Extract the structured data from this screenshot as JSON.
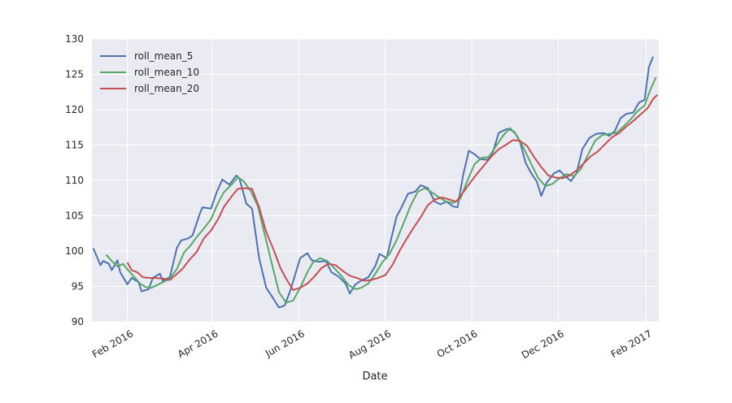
{
  "chart_data": {
    "type": "line",
    "title": "",
    "xlabel": "Date",
    "ylabel": "",
    "x_range": [
      "2016-01-07",
      "2017-02-10"
    ],
    "ylim": [
      90,
      130
    ],
    "yticks": [
      90,
      95,
      100,
      105,
      110,
      115,
      120,
      125,
      130
    ],
    "xticks": [
      {
        "label": "Feb 2016",
        "date": "2016-02-01"
      },
      {
        "label": "Apr 2016",
        "date": "2016-04-01"
      },
      {
        "label": "Jun 2016",
        "date": "2016-06-01"
      },
      {
        "label": "Aug 2016",
        "date": "2016-08-01"
      },
      {
        "label": "Oct 2016",
        "date": "2016-10-01"
      },
      {
        "label": "Dec 2016",
        "date": "2016-12-01"
      },
      {
        "label": "Feb 2017",
        "date": "2017-02-01"
      }
    ],
    "grid": true,
    "legend_position": "upper-left",
    "series": [
      {
        "name": "roll_mean_5",
        "color": "#4c72b0",
        "points": [
          [
            "2016-01-08",
            100.4
          ],
          [
            "2016-01-13",
            98.0
          ],
          [
            "2016-01-15",
            98.6
          ],
          [
            "2016-01-19",
            98.2
          ],
          [
            "2016-01-21",
            97.3
          ],
          [
            "2016-01-25",
            98.7
          ],
          [
            "2016-01-27",
            97.0
          ],
          [
            "2016-02-01",
            95.3
          ],
          [
            "2016-02-04",
            96.2
          ],
          [
            "2016-02-09",
            95.6
          ],
          [
            "2016-02-11",
            94.3
          ],
          [
            "2016-02-16",
            94.6
          ],
          [
            "2016-02-19",
            96.2
          ],
          [
            "2016-02-24",
            96.8
          ],
          [
            "2016-02-26",
            95.8
          ],
          [
            "2016-03-02",
            96.3
          ],
          [
            "2016-03-07",
            100.5
          ],
          [
            "2016-03-10",
            101.5
          ],
          [
            "2016-03-15",
            101.8
          ],
          [
            "2016-03-18",
            102.2
          ],
          [
            "2016-03-23",
            105.2
          ],
          [
            "2016-03-25",
            106.2
          ],
          [
            "2016-03-31",
            106.0
          ],
          [
            "2016-04-04",
            108.3
          ],
          [
            "2016-04-08",
            110.1
          ],
          [
            "2016-04-13",
            109.4
          ],
          [
            "2016-04-18",
            110.7
          ],
          [
            "2016-04-20",
            110.3
          ],
          [
            "2016-04-25",
            106.7
          ],
          [
            "2016-04-29",
            106.0
          ],
          [
            "2016-05-04",
            99.0
          ],
          [
            "2016-05-09",
            94.8
          ],
          [
            "2016-05-13",
            93.6
          ],
          [
            "2016-05-18",
            92.0
          ],
          [
            "2016-05-22",
            92.3
          ],
          [
            "2016-05-26",
            94.4
          ],
          [
            "2016-06-02",
            99.0
          ],
          [
            "2016-06-07",
            99.7
          ],
          [
            "2016-06-10",
            98.7
          ],
          [
            "2016-06-15",
            98.5
          ],
          [
            "2016-06-20",
            98.6
          ],
          [
            "2016-06-24",
            97.0
          ],
          [
            "2016-06-29",
            96.4
          ],
          [
            "2016-07-04",
            95.4
          ],
          [
            "2016-07-07",
            94.0
          ],
          [
            "2016-07-11",
            95.3
          ],
          [
            "2016-07-14",
            95.7
          ],
          [
            "2016-07-20",
            96.3
          ],
          [
            "2016-07-25",
            97.9
          ],
          [
            "2016-07-28",
            99.6
          ],
          [
            "2016-08-02",
            99.0
          ],
          [
            "2016-08-05",
            101.6
          ],
          [
            "2016-08-09",
            104.9
          ],
          [
            "2016-08-12",
            106.0
          ],
          [
            "2016-08-17",
            108.1
          ],
          [
            "2016-08-22",
            108.4
          ],
          [
            "2016-08-26",
            109.3
          ],
          [
            "2016-08-31",
            108.9
          ],
          [
            "2016-09-05",
            107.0
          ],
          [
            "2016-09-09",
            106.6
          ],
          [
            "2016-09-13",
            107.0
          ],
          [
            "2016-09-18",
            106.3
          ],
          [
            "2016-09-21",
            106.2
          ],
          [
            "2016-09-25",
            110.8
          ],
          [
            "2016-09-29",
            114.2
          ],
          [
            "2016-10-03",
            113.7
          ],
          [
            "2016-10-07",
            113.0
          ],
          [
            "2016-10-12",
            112.9
          ],
          [
            "2016-10-16",
            114.0
          ],
          [
            "2016-10-20",
            116.7
          ],
          [
            "2016-10-26",
            117.3
          ],
          [
            "2016-10-31",
            116.9
          ],
          [
            "2016-11-04",
            115.5
          ],
          [
            "2016-11-08",
            112.5
          ],
          [
            "2016-11-12",
            111.0
          ],
          [
            "2016-11-16",
            109.8
          ],
          [
            "2016-11-19",
            107.8
          ],
          [
            "2016-11-23",
            109.7
          ],
          [
            "2016-11-28",
            111.0
          ],
          [
            "2016-12-02",
            111.4
          ],
          [
            "2016-12-06",
            110.6
          ],
          [
            "2016-12-10",
            109.9
          ],
          [
            "2016-12-14",
            111.0
          ],
          [
            "2016-12-18",
            114.4
          ],
          [
            "2016-12-23",
            116.0
          ],
          [
            "2016-12-28",
            116.6
          ],
          [
            "2017-01-02",
            116.7
          ],
          [
            "2017-01-06",
            116.3
          ],
          [
            "2017-01-10",
            117.0
          ],
          [
            "2017-01-14",
            118.8
          ],
          [
            "2017-01-18",
            119.4
          ],
          [
            "2017-01-23",
            119.6
          ],
          [
            "2017-01-27",
            121.0
          ],
          [
            "2017-01-31",
            121.4
          ],
          [
            "2017-02-03",
            126.0
          ],
          [
            "2017-02-06",
            127.5
          ]
        ]
      },
      {
        "name": "roll_mean_10",
        "color": "#55a868",
        "points": [
          [
            "2016-01-17",
            99.5
          ],
          [
            "2016-01-21",
            98.6
          ],
          [
            "2016-01-25",
            97.8
          ],
          [
            "2016-01-29",
            98.2
          ],
          [
            "2016-02-02",
            97.2
          ],
          [
            "2016-02-06",
            96.3
          ],
          [
            "2016-02-10",
            95.4
          ],
          [
            "2016-02-14",
            94.9
          ],
          [
            "2016-02-18",
            94.8
          ],
          [
            "2016-02-22",
            95.2
          ],
          [
            "2016-02-26",
            95.6
          ],
          [
            "2016-03-02",
            96.1
          ],
          [
            "2016-03-07",
            97.5
          ],
          [
            "2016-03-12",
            99.8
          ],
          [
            "2016-03-17",
            100.9
          ],
          [
            "2016-03-21",
            102.0
          ],
          [
            "2016-03-26",
            103.2
          ],
          [
            "2016-03-31",
            104.5
          ],
          [
            "2016-04-05",
            106.8
          ],
          [
            "2016-04-09",
            108.3
          ],
          [
            "2016-04-14",
            109.3
          ],
          [
            "2016-04-19",
            110.4
          ],
          [
            "2016-04-23",
            109.9
          ],
          [
            "2016-04-28",
            108.5
          ],
          [
            "2016-05-03",
            106.4
          ],
          [
            "2016-05-08",
            102.3
          ],
          [
            "2016-05-13",
            98.2
          ],
          [
            "2016-05-18",
            94.2
          ],
          [
            "2016-05-23",
            92.7
          ],
          [
            "2016-05-28",
            93.0
          ],
          [
            "2016-06-02",
            94.8
          ],
          [
            "2016-06-07",
            97.0
          ],
          [
            "2016-06-11",
            98.4
          ],
          [
            "2016-06-16",
            99.0
          ],
          [
            "2016-06-21",
            98.6
          ],
          [
            "2016-06-26",
            97.6
          ],
          [
            "2016-07-01",
            96.5
          ],
          [
            "2016-07-06",
            95.2
          ],
          [
            "2016-07-11",
            94.6
          ],
          [
            "2016-07-15",
            94.8
          ],
          [
            "2016-07-20",
            95.4
          ],
          [
            "2016-07-25",
            96.8
          ],
          [
            "2016-07-30",
            98.4
          ],
          [
            "2016-08-04",
            99.6
          ],
          [
            "2016-08-09",
            101.5
          ],
          [
            "2016-08-14",
            104.0
          ],
          [
            "2016-08-19",
            106.5
          ],
          [
            "2016-08-24",
            108.4
          ],
          [
            "2016-08-29",
            108.9
          ],
          [
            "2016-09-03",
            108.3
          ],
          [
            "2016-09-08",
            107.6
          ],
          [
            "2016-09-13",
            107.0
          ],
          [
            "2016-09-18",
            106.8
          ],
          [
            "2016-09-23",
            107.4
          ],
          [
            "2016-09-28",
            110.0
          ],
          [
            "2016-10-03",
            112.3
          ],
          [
            "2016-10-08",
            113.2
          ],
          [
            "2016-10-13",
            113.3
          ],
          [
            "2016-10-18",
            114.8
          ],
          [
            "2016-10-23",
            116.3
          ],
          [
            "2016-10-28",
            117.4
          ],
          [
            "2016-11-02",
            116.3
          ],
          [
            "2016-11-07",
            114.4
          ],
          [
            "2016-11-12",
            112.3
          ],
          [
            "2016-11-17",
            110.3
          ],
          [
            "2016-11-22",
            109.2
          ],
          [
            "2016-11-27",
            109.5
          ],
          [
            "2016-12-02",
            110.3
          ],
          [
            "2016-12-07",
            110.9
          ],
          [
            "2016-12-12",
            110.6
          ],
          [
            "2016-12-17",
            111.6
          ],
          [
            "2016-12-22",
            113.6
          ],
          [
            "2016-12-27",
            115.6
          ],
          [
            "2017-01-01",
            116.4
          ],
          [
            "2017-01-06",
            116.6
          ],
          [
            "2017-01-11",
            116.7
          ],
          [
            "2017-01-16",
            117.6
          ],
          [
            "2017-01-21",
            118.6
          ],
          [
            "2017-01-26",
            119.8
          ],
          [
            "2017-01-31",
            120.6
          ],
          [
            "2017-02-04",
            122.8
          ],
          [
            "2017-02-08",
            124.6
          ]
        ]
      },
      {
        "name": "roll_mean_20",
        "color": "#c44e52",
        "points": [
          [
            "2016-02-01",
            98.4
          ],
          [
            "2016-02-04",
            97.3
          ],
          [
            "2016-02-08",
            97.0
          ],
          [
            "2016-02-12",
            96.3
          ],
          [
            "2016-02-17",
            96.2
          ],
          [
            "2016-02-21",
            96.2
          ],
          [
            "2016-02-26",
            96.1
          ],
          [
            "2016-03-02",
            95.9
          ],
          [
            "2016-03-06",
            96.6
          ],
          [
            "2016-03-11",
            97.5
          ],
          [
            "2016-03-16",
            98.8
          ],
          [
            "2016-03-21",
            99.9
          ],
          [
            "2016-03-26",
            101.8
          ],
          [
            "2016-03-31",
            102.9
          ],
          [
            "2016-04-05",
            104.5
          ],
          [
            "2016-04-09",
            106.2
          ],
          [
            "2016-04-14",
            107.6
          ],
          [
            "2016-04-19",
            108.8
          ],
          [
            "2016-04-24",
            108.9
          ],
          [
            "2016-04-29",
            108.8
          ],
          [
            "2016-05-04",
            106.2
          ],
          [
            "2016-05-09",
            102.7
          ],
          [
            "2016-05-14",
            100.3
          ],
          [
            "2016-05-19",
            97.6
          ],
          [
            "2016-05-23",
            96.1
          ],
          [
            "2016-05-28",
            94.5
          ],
          [
            "2016-06-02",
            94.8
          ],
          [
            "2016-06-07",
            95.4
          ],
          [
            "2016-06-12",
            96.4
          ],
          [
            "2016-06-17",
            97.6
          ],
          [
            "2016-06-22",
            98.2
          ],
          [
            "2016-06-27",
            98.0
          ],
          [
            "2016-07-02",
            97.2
          ],
          [
            "2016-07-07",
            96.5
          ],
          [
            "2016-07-12",
            96.2
          ],
          [
            "2016-07-17",
            95.8
          ],
          [
            "2016-07-22",
            95.9
          ],
          [
            "2016-07-27",
            96.2
          ],
          [
            "2016-08-01",
            96.6
          ],
          [
            "2016-08-06",
            98.0
          ],
          [
            "2016-08-11",
            100.0
          ],
          [
            "2016-08-16",
            101.7
          ],
          [
            "2016-08-21",
            103.3
          ],
          [
            "2016-08-26",
            104.8
          ],
          [
            "2016-08-31",
            106.5
          ],
          [
            "2016-09-05",
            107.3
          ],
          [
            "2016-09-10",
            107.6
          ],
          [
            "2016-09-15",
            107.3
          ],
          [
            "2016-09-20",
            107.0
          ],
          [
            "2016-09-25",
            108.3
          ],
          [
            "2016-09-30",
            109.7
          ],
          [
            "2016-10-05",
            111.0
          ],
          [
            "2016-10-10",
            112.2
          ],
          [
            "2016-10-15",
            113.4
          ],
          [
            "2016-10-20",
            114.4
          ],
          [
            "2016-10-25",
            115.0
          ],
          [
            "2016-10-30",
            115.7
          ],
          [
            "2016-11-04",
            115.6
          ],
          [
            "2016-11-09",
            114.9
          ],
          [
            "2016-11-14",
            113.3
          ],
          [
            "2016-11-19",
            111.9
          ],
          [
            "2016-11-24",
            110.7
          ],
          [
            "2016-11-29",
            110.4
          ],
          [
            "2016-12-04",
            110.3
          ],
          [
            "2016-12-09",
            110.7
          ],
          [
            "2016-12-14",
            111.4
          ],
          [
            "2016-12-19",
            112.4
          ],
          [
            "2016-12-24",
            113.4
          ],
          [
            "2016-12-29",
            114.1
          ],
          [
            "2017-01-03",
            115.1
          ],
          [
            "2017-01-08",
            116.1
          ],
          [
            "2017-01-13",
            116.7
          ],
          [
            "2017-01-18",
            117.6
          ],
          [
            "2017-01-23",
            118.4
          ],
          [
            "2017-01-28",
            119.3
          ],
          [
            "2017-02-02",
            120.2
          ],
          [
            "2017-02-06",
            121.5
          ],
          [
            "2017-02-09",
            122.1
          ]
        ]
      }
    ]
  }
}
